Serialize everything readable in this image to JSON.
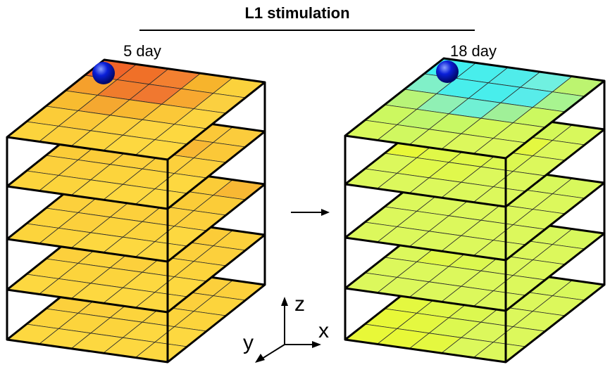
{
  "header": {
    "title": "L1 stimulation"
  },
  "cubes": [
    {
      "day_label": "5 day",
      "marker_color": "#0a1fd8",
      "layers_top_to_bottom": [
        [
          [
            "#f06428",
            "#f07028",
            "#f38030",
            "#f7b42c",
            "#fbd23c"
          ],
          [
            "#f5a02c",
            "#f07c2c",
            "#f07830",
            "#f7a830",
            "#fbd040"
          ],
          [
            "#f8bc30",
            "#f5a830",
            "#f8b830",
            "#fbc838",
            "#fcd440"
          ],
          [
            "#fbcc38",
            "#fbc838",
            "#fcd03c",
            "#fcd440",
            "#fdd840"
          ],
          [
            "#fcd43c",
            "#fcd03c",
            "#fcd43c",
            "#fdd840",
            "#fdd840"
          ]
        ],
        [
          [
            "#f5a030",
            "#f7b030",
            "#f8bc34",
            "#fbc838",
            "#fbcc3c"
          ],
          [
            "#fbc838",
            "#f8c034",
            "#fbc838",
            "#f8b834",
            "#fbc838"
          ],
          [
            "#fbcc38",
            "#fbcc38",
            "#fcd03c",
            "#fcd03c",
            "#fcd03c"
          ],
          [
            "#fcd03c",
            "#fcd03c",
            "#fcd43c",
            "#fcd43c",
            "#fdd840"
          ],
          [
            "#fcd43c",
            "#fcd43c",
            "#fdd840",
            "#fdd840",
            "#fdd840"
          ]
        ],
        [
          [
            "#fbcc38",
            "#fbc838",
            "#fbc838",
            "#fbcc38",
            "#f8b834"
          ],
          [
            "#fbcc38",
            "#fbcc38",
            "#fcd03c",
            "#fbcc38",
            "#fbcc38"
          ],
          [
            "#fcd03c",
            "#fcd03c",
            "#fcd03c",
            "#fcd03c",
            "#fcd03c"
          ],
          [
            "#fcd43c",
            "#fcd03c",
            "#fcd43c",
            "#fcd43c",
            "#fdd840"
          ],
          [
            "#fcd43c",
            "#fcd43c",
            "#fdd840",
            "#fdd840",
            "#fdd840"
          ]
        ],
        [
          [
            "#fbcc38",
            "#fbcc38",
            "#fcd03c",
            "#fbcc38",
            "#fcd03c"
          ],
          [
            "#fcd03c",
            "#fcd03c",
            "#fbcc38",
            "#fcd03c",
            "#fcd03c"
          ],
          [
            "#fcd03c",
            "#fcd43c",
            "#fcd03c",
            "#fcd43c",
            "#fcd43c"
          ],
          [
            "#fcd43c",
            "#fcd43c",
            "#fcd43c",
            "#fdd840",
            "#fdd840"
          ],
          [
            "#fdd840",
            "#fcd43c",
            "#fdd840",
            "#fdd840",
            "#fdd840"
          ]
        ],
        [
          [
            "#f8bc34",
            "#fbc838",
            "#fbcc38",
            "#fcd03c",
            "#fcd03c"
          ],
          [
            "#fbcc38",
            "#fcd03c",
            "#fcd03c",
            "#fcd03c",
            "#fcd43c"
          ],
          [
            "#fcd03c",
            "#fcd03c",
            "#fcd43c",
            "#fcd43c",
            "#fcd43c"
          ],
          [
            "#fcd43c",
            "#fcd43c",
            "#fcd43c",
            "#fdd840",
            "#fdd840"
          ],
          [
            "#fdd840",
            "#fdd840",
            "#fdd840",
            "#fdd840",
            "#fdd840"
          ]
        ]
      ]
    },
    {
      "day_label": "18 day",
      "marker_color": "#0a1fd8",
      "layers_top_to_bottom": [
        [
          [
            "#40f0f0",
            "#48eeec",
            "#50ecea",
            "#70f0e0",
            "#bcf470"
          ],
          [
            "#80f0c8",
            "#48eeec",
            "#48eeec",
            "#58ecea",
            "#a8f490"
          ],
          [
            "#b8f478",
            "#90f0b4",
            "#70f0d4",
            "#a0f098",
            "#ccf860"
          ],
          [
            "#ccf860",
            "#c0f66c",
            "#c8f864",
            "#d4f858",
            "#d8f85c"
          ],
          [
            "#d8f85c",
            "#d0f860",
            "#d8f85c",
            "#dcf85c",
            "#dcf85c"
          ]
        ],
        [
          [
            "#58ecec",
            "#98f0a8",
            "#c4f46a",
            "#d4f858",
            "#d8f85c"
          ],
          [
            "#e4f838",
            "#d8f850",
            "#dcf850",
            "#e4f840",
            "#dcf85c"
          ],
          [
            "#e8f838",
            "#e0f848",
            "#e0f848",
            "#dcf850",
            "#dcf85c"
          ],
          [
            "#dcf85c",
            "#e0f84c",
            "#e0f84c",
            "#dcf85c",
            "#dcf85c"
          ],
          [
            "#dcf85c",
            "#dcf85c",
            "#dcf85c",
            "#dcf85c",
            "#dcf85c"
          ]
        ],
        [
          [
            "#d8f85c",
            "#d8f85c",
            "#d8f85c",
            "#d8f85c",
            "#d8f85c"
          ],
          [
            "#dcf850",
            "#e0f848",
            "#dcf850",
            "#dcf85c",
            "#dcf85c"
          ],
          [
            "#dcf85c",
            "#dcf85c",
            "#dcf85c",
            "#dcf85c",
            "#dcf85c"
          ],
          [
            "#dcf85c",
            "#dcf85c",
            "#dcf85c",
            "#dcf85c",
            "#dcf85c"
          ],
          [
            "#dcf85c",
            "#dcf85c",
            "#dcf85c",
            "#dcf85c",
            "#dcf85c"
          ]
        ],
        [
          [
            "#98f0a0",
            "#c8f468",
            "#d8f85c",
            "#d8f85c",
            "#d8f85c"
          ],
          [
            "#e8f838",
            "#e0f848",
            "#dcf850",
            "#dcf85c",
            "#dcf85c"
          ],
          [
            "#dcf85c",
            "#e0f848",
            "#dcf850",
            "#dcf85c",
            "#dcf85c"
          ],
          [
            "#dcf85c",
            "#dcf85c",
            "#dcf85c",
            "#dcf85c",
            "#dcf85c"
          ],
          [
            "#dcf85c",
            "#dcf85c",
            "#dcf85c",
            "#dcf85c",
            "#dcf85c"
          ]
        ],
        [
          [
            "#d8f85c",
            "#d8f85c",
            "#d8f85c",
            "#d8f85c",
            "#d8f85c"
          ],
          [
            "#dcf85c",
            "#dcf85c",
            "#dcf85c",
            "#dcf85c",
            "#dcf85c"
          ],
          [
            "#e4f840",
            "#e0f848",
            "#dcf850",
            "#dcf85c",
            "#dcf85c"
          ],
          [
            "#e8f838",
            "#e4f840",
            "#dcf850",
            "#dcf85c",
            "#dcf85c"
          ],
          [
            "#e8f838",
            "#e8f838",
            "#e4f840",
            "#dcf85c",
            "#dcf85c"
          ]
        ]
      ]
    }
  ],
  "axes": {
    "z_label": "z",
    "x_label": "x",
    "y_label": "y"
  },
  "arrow_icon": "right-arrow-icon",
  "colors": {
    "line": "#000000",
    "grid": "#2a2a2a"
  }
}
